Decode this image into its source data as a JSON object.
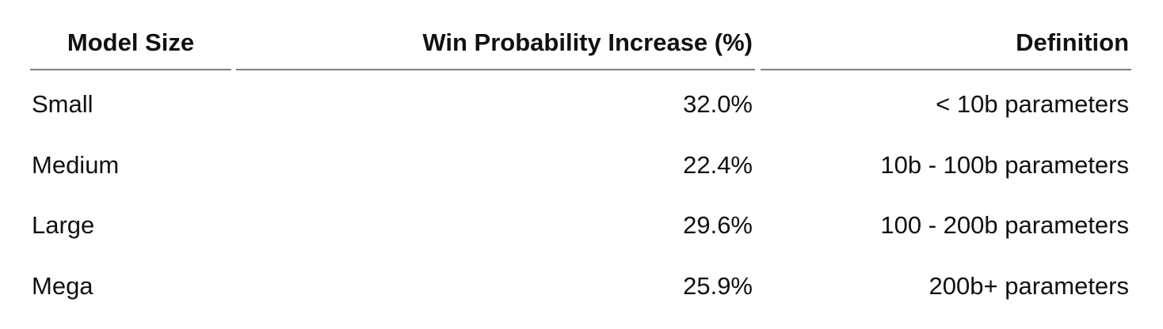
{
  "table": {
    "columns": [
      "Model Size",
      "Win Probability Increase (%)",
      "Definition"
    ],
    "rows": [
      [
        "Small",
        "32.0%",
        "< 10b parameters"
      ],
      [
        "Medium",
        "22.4%",
        "10b - 100b parameters"
      ],
      [
        "Large",
        "29.6%",
        "100 - 200b parameters"
      ],
      [
        "Mega",
        "25.9%",
        "200b+ parameters"
      ]
    ]
  }
}
